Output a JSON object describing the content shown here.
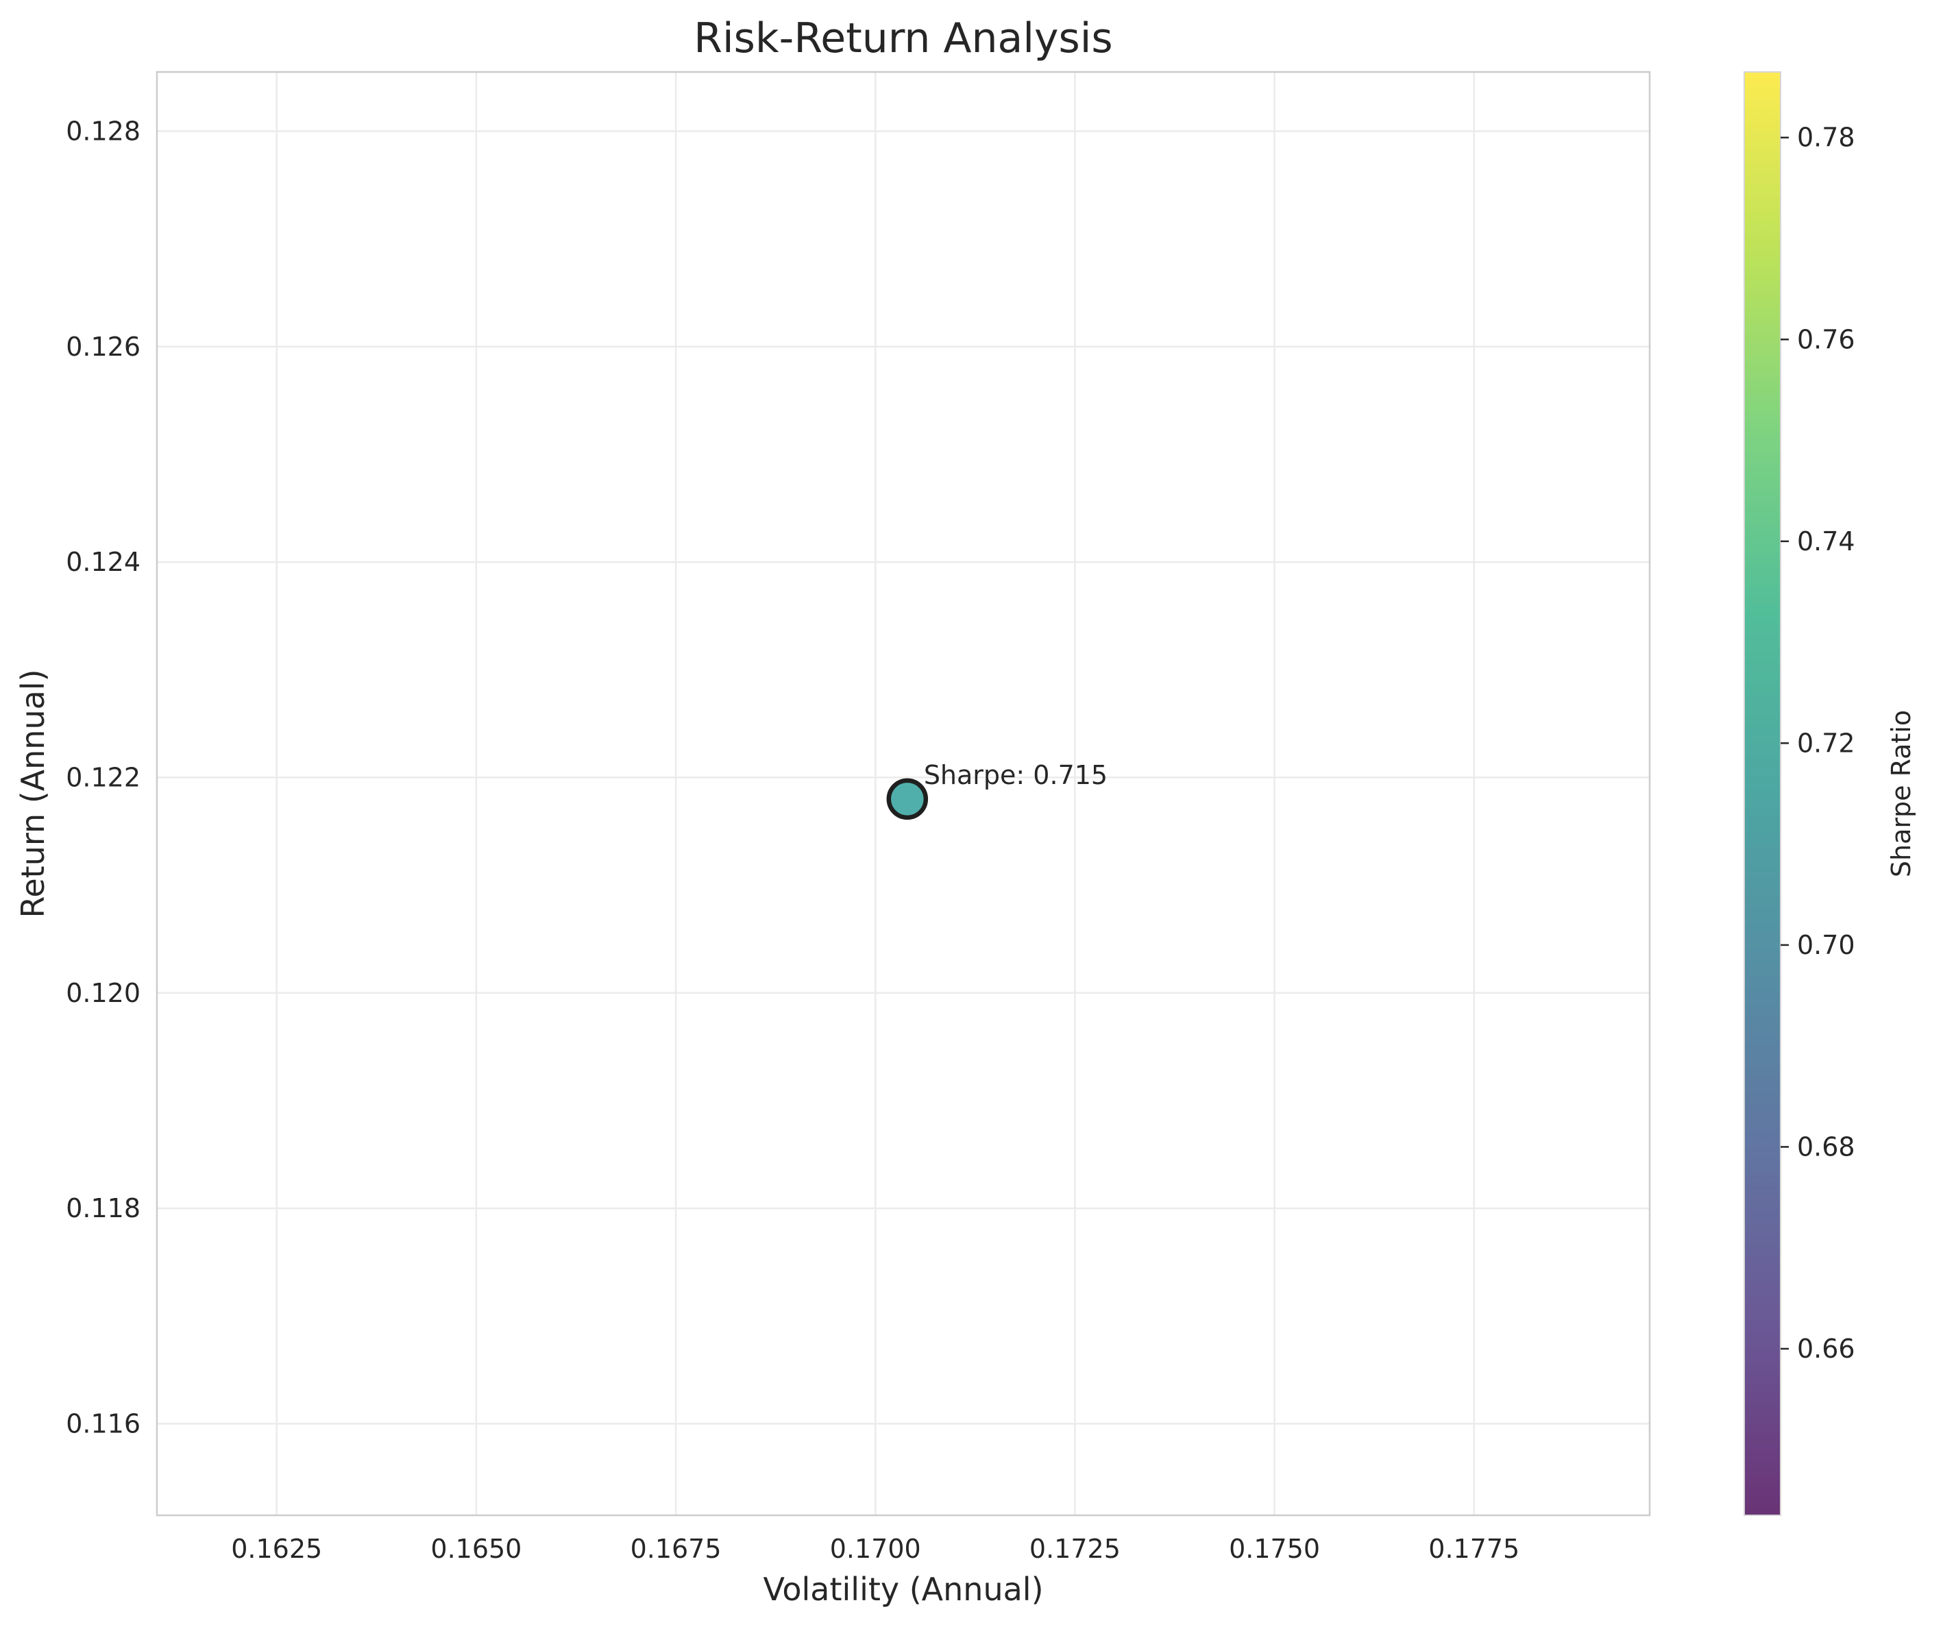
{
  "chart_data": {
    "type": "scatter",
    "title": "Risk-Return Analysis",
    "xlabel": "Volatility (Annual)",
    "ylabel": "Return (Annual)",
    "xlim": [
      0.161,
      0.1797
    ],
    "ylim": [
      0.11515,
      0.12855
    ],
    "xticks": [
      "0.1625",
      "0.1650",
      "0.1675",
      "0.1700",
      "0.1725",
      "0.1750",
      "0.1775"
    ],
    "yticks": [
      "0.116",
      "0.118",
      "0.120",
      "0.122",
      "0.124",
      "0.126",
      "0.128"
    ],
    "grid": true,
    "points": [
      {
        "x": 0.1704,
        "y": 0.1218,
        "sharpe": 0.715,
        "label": "Sharpe: 0.715"
      }
    ],
    "colorbar": {
      "label": "Sharpe Ratio",
      "colormap": "viridis",
      "range": [
        0.6435,
        0.7865
      ],
      "ticks": [
        "0.66",
        "0.68",
        "0.70",
        "0.72",
        "0.74",
        "0.76",
        "0.78"
      ]
    },
    "colors": {
      "point_fill": "#2a9d99",
      "point_edge": "#1f1f1f",
      "grid": "#ebebeb",
      "frame": "#cccccc"
    }
  }
}
